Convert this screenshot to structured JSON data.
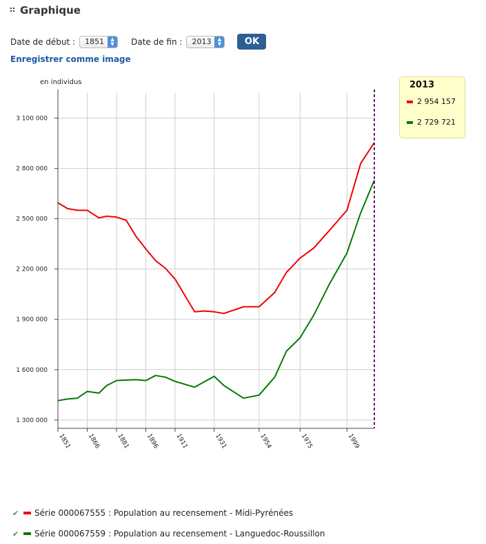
{
  "header": {
    "title": "Graphique"
  },
  "controls": {
    "start_label": "Date de début :",
    "start_value": "1851",
    "end_label": "Date de fin :",
    "end_value": "2013",
    "ok_label": "OK",
    "save_link": "Enregistrer comme image"
  },
  "tooltip": {
    "year": "2013",
    "rows": [
      {
        "value": "2 954 157",
        "color": "#ee0000"
      },
      {
        "value": "2 729 721",
        "color": "#007a00"
      }
    ]
  },
  "legend": [
    {
      "label": "Série 000067555 : Population au recensement - Midi-Pyrénées",
      "color": "#ee0000"
    },
    {
      "label": "Série 000067559 : Population au recensement - Languedoc-Roussillon",
      "color": "#007a00"
    }
  ],
  "chart_data": {
    "type": "line",
    "ylabel": "en individus",
    "xlim": [
      1851,
      2013
    ],
    "ylim": [
      1250000,
      3250000
    ],
    "y_ticks": [
      1300000,
      1600000,
      1900000,
      2200000,
      2500000,
      2800000,
      3100000
    ],
    "y_tick_labels": [
      "1 300 000",
      "1 600 000",
      "1 900 000",
      "2 200 000",
      "2 500 000",
      "2 800 000",
      "3 100 000"
    ],
    "x_tick_labels": [
      "1851",
      "1866",
      "1881",
      "1896",
      "1911",
      "1931",
      "1954",
      "1975",
      "1999"
    ],
    "x_tick_years": [
      1851,
      1866,
      1881,
      1896,
      1911,
      1931,
      1954,
      1975,
      1999
    ],
    "marker_year": 2013,
    "series": [
      {
        "name": "Série 000067555 : Population au recensement - Midi-Pyrénées",
        "color": "#ee0000",
        "points": [
          [
            1851,
            2595000
          ],
          [
            1856,
            2560000
          ],
          [
            1861,
            2550000
          ],
          [
            1866,
            2550000
          ],
          [
            1872,
            2505000
          ],
          [
            1876,
            2515000
          ],
          [
            1881,
            2510000
          ],
          [
            1886,
            2490000
          ],
          [
            1891,
            2395000
          ],
          [
            1896,
            2320000
          ],
          [
            1901,
            2250000
          ],
          [
            1906,
            2205000
          ],
          [
            1911,
            2140000
          ],
          [
            1921,
            1945000
          ],
          [
            1926,
            1950000
          ],
          [
            1931,
            1945000
          ],
          [
            1936,
            1935000
          ],
          [
            1946,
            1975000
          ],
          [
            1954,
            1975000
          ],
          [
            1962,
            2060000
          ],
          [
            1968,
            2180000
          ],
          [
            1975,
            2265000
          ],
          [
            1982,
            2325000
          ],
          [
            1990,
            2430000
          ],
          [
            1999,
            2550000
          ],
          [
            2006,
            2830000
          ],
          [
            2013,
            2954157
          ]
        ]
      },
      {
        "name": "Série 000067559 : Population au recensement - Languedoc-Roussillon",
        "color": "#007a00",
        "points": [
          [
            1851,
            1415000
          ],
          [
            1856,
            1425000
          ],
          [
            1861,
            1430000
          ],
          [
            1866,
            1470000
          ],
          [
            1872,
            1460000
          ],
          [
            1876,
            1505000
          ],
          [
            1881,
            1535000
          ],
          [
            1886,
            1538000
          ],
          [
            1891,
            1540000
          ],
          [
            1896,
            1535000
          ],
          [
            1901,
            1565000
          ],
          [
            1906,
            1555000
          ],
          [
            1911,
            1530000
          ],
          [
            1921,
            1495000
          ],
          [
            1931,
            1560000
          ],
          [
            1936,
            1505000
          ],
          [
            1946,
            1430000
          ],
          [
            1954,
            1448000
          ],
          [
            1962,
            1555000
          ],
          [
            1968,
            1710000
          ],
          [
            1975,
            1790000
          ],
          [
            1982,
            1925000
          ],
          [
            1990,
            2110000
          ],
          [
            1999,
            2295000
          ],
          [
            2006,
            2535000
          ],
          [
            2013,
            2729721
          ]
        ]
      }
    ]
  }
}
